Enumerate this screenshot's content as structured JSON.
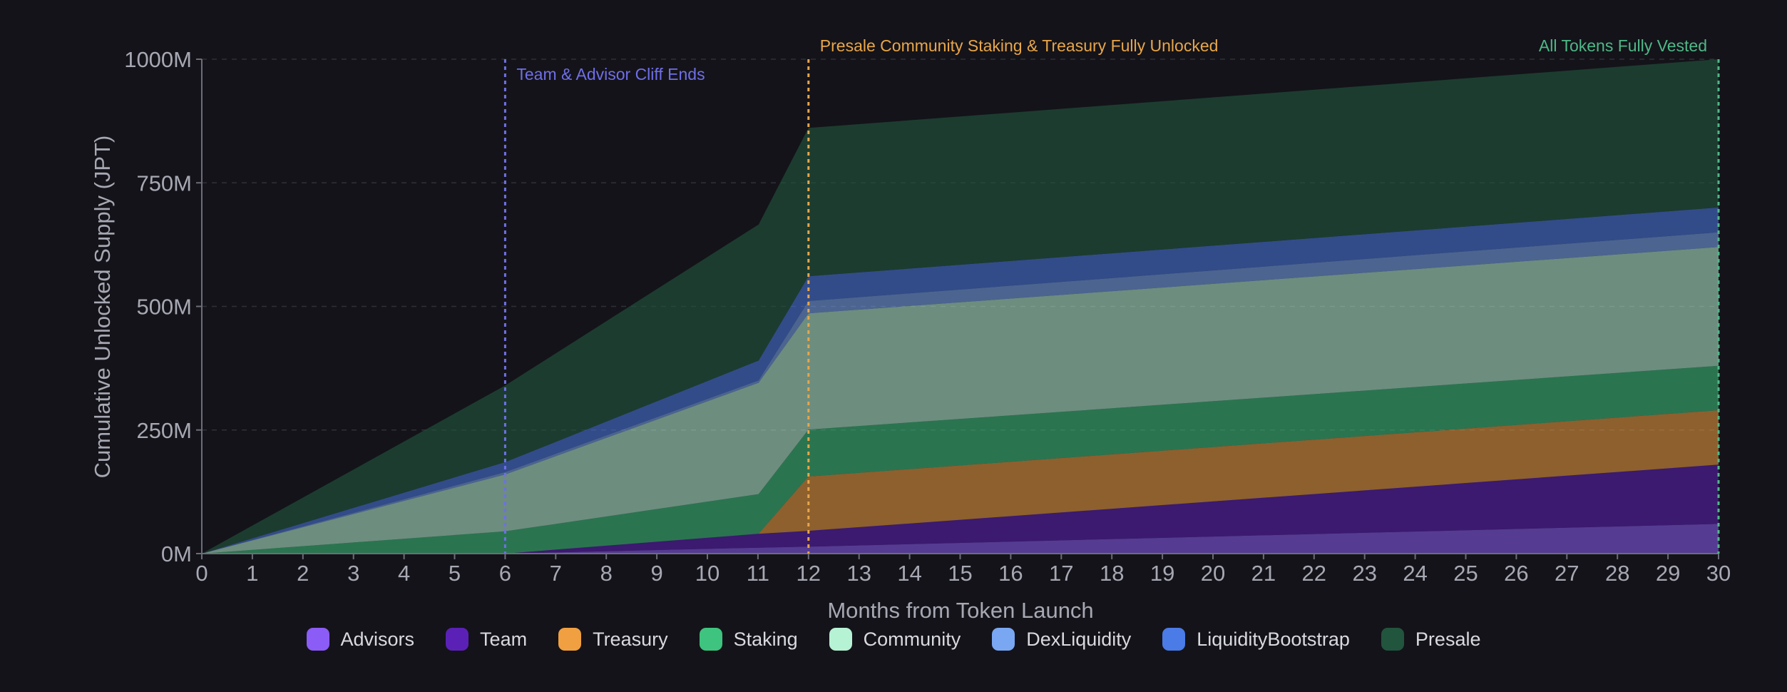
{
  "chart_data": {
    "type": "area",
    "stacked": true,
    "xlabel": "Months from Token Launch",
    "ylabel": "Cumulative Unlocked Supply (JPT)",
    "xlim": [
      0,
      30
    ],
    "ylim": [
      0,
      1000
    ],
    "y_unit_suffix": "M",
    "y_ticks": [
      0,
      250,
      500,
      750,
      1000
    ],
    "grid": "horizontal dashed",
    "legend_position": "bottom-center",
    "x": [
      0,
      6,
      11,
      11.01,
      12,
      30
    ],
    "series": [
      {
        "name": "Advisors",
        "color": "#8b5cf6",
        "values": [
          0,
          0,
          12,
          12,
          14,
          60
        ]
      },
      {
        "name": "Team",
        "color": "#5b21b6",
        "values": [
          0,
          0,
          28,
          28,
          32,
          120
        ]
      },
      {
        "name": "Treasury",
        "color": "#f0a040",
        "values": [
          0,
          0,
          0,
          0,
          110,
          110
        ]
      },
      {
        "name": "Staking",
        "color": "#3ec47e",
        "values": [
          0,
          45,
          80,
          80,
          95,
          90
        ]
      },
      {
        "name": "Community",
        "color": "#b6f2d4",
        "values": [
          0,
          115,
          225,
          225,
          235,
          240
        ]
      },
      {
        "name": "DexLiquidity",
        "color": "#7aa7f2",
        "values": [
          0,
          5,
          5,
          5,
          25,
          30
        ]
      },
      {
        "name": "LiquidityBootstrap",
        "color": "#4a7be6",
        "values": [
          0,
          20,
          40,
          40,
          50,
          50
        ]
      },
      {
        "name": "Presale",
        "color": "#22553d",
        "values": [
          0,
          155,
          275,
          275,
          300,
          300
        ]
      }
    ],
    "annotations": [
      {
        "x": 6,
        "label": "Team & Advisor Cliff Ends",
        "color": "#6f6fe8"
      },
      {
        "x": 12,
        "label": "Presale Community Staking & Treasury Fully Unlocked",
        "color": "#e8a64a"
      },
      {
        "x": 30,
        "label": "All Tokens Fully Vested",
        "color": "#4fb887"
      }
    ]
  }
}
